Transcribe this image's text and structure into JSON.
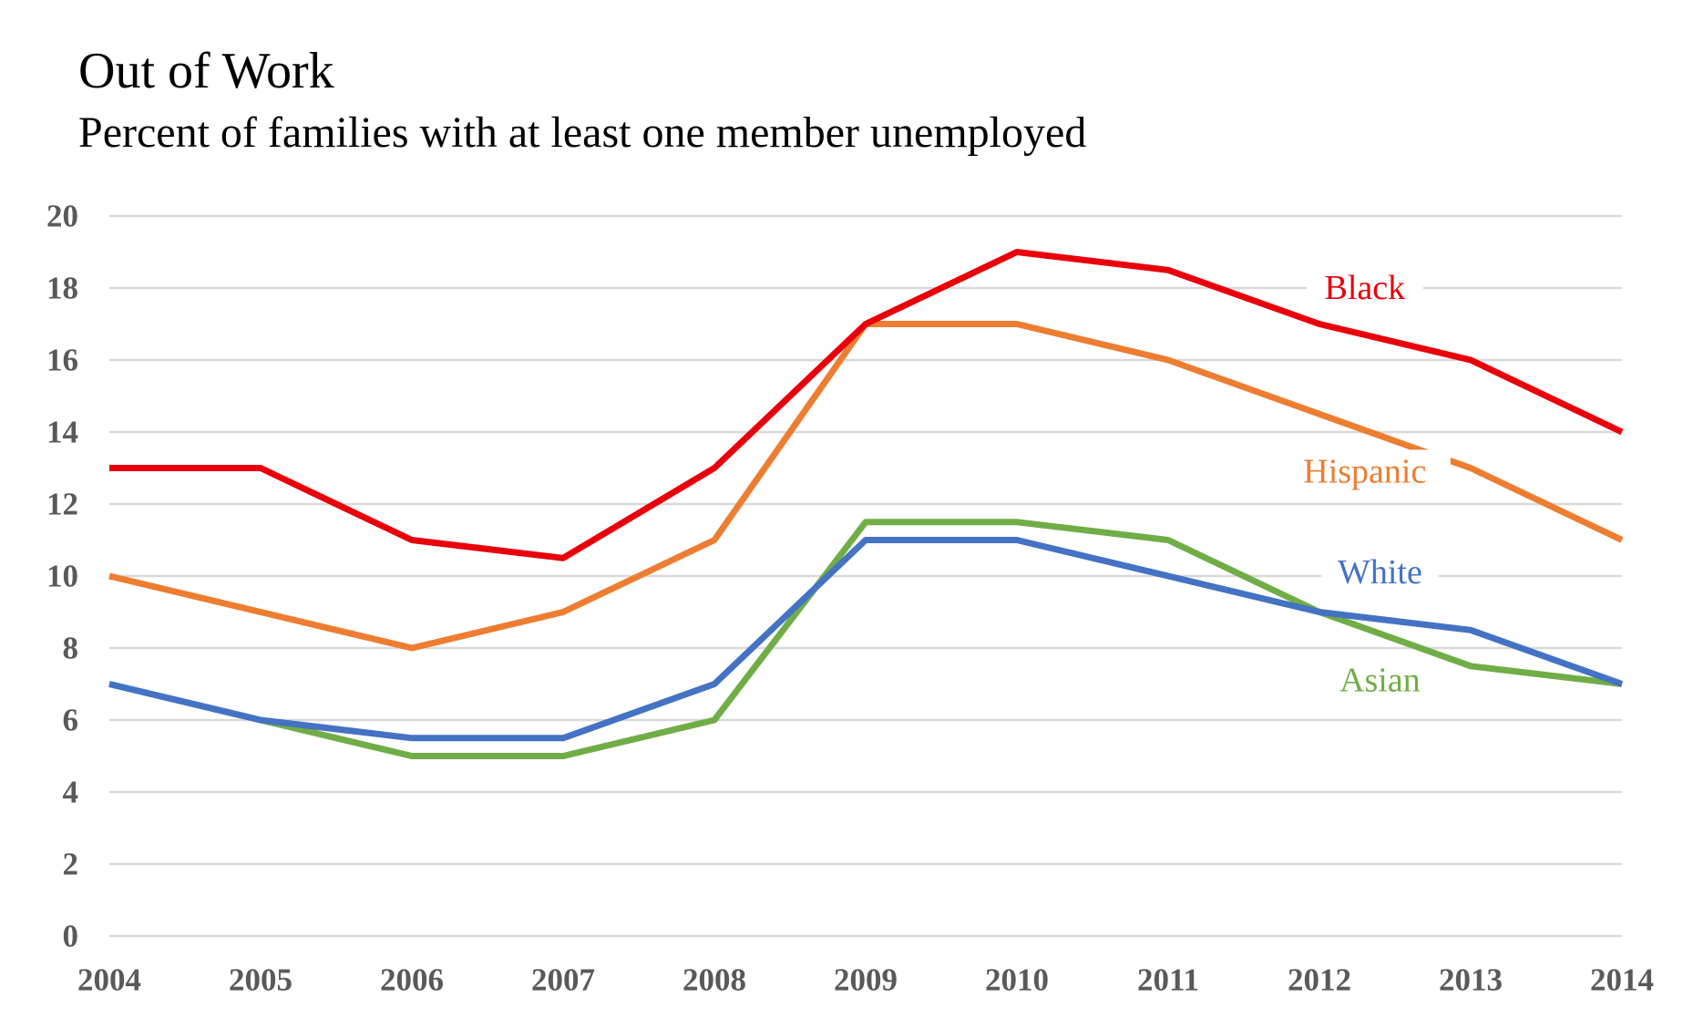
{
  "chart_data": {
    "type": "line",
    "title": "Out of Work",
    "subtitle": "Percent of families with at least one member unemployed",
    "xlabel": "",
    "ylabel": "",
    "x": [
      "2004",
      "2005",
      "2006",
      "2007",
      "2008",
      "2009",
      "2010",
      "2011",
      "2012",
      "2013",
      "2014"
    ],
    "y_ticks": [
      "0",
      "2",
      "4",
      "6",
      "8",
      "10",
      "12",
      "14",
      "16",
      "18",
      "20"
    ],
    "ylim": [
      0,
      20
    ],
    "grid": true,
    "legend": "inline labels at right",
    "series": [
      {
        "name": "Black",
        "color": "#e8000b",
        "values": [
          13,
          13,
          11,
          10.5,
          13,
          17,
          19,
          18.5,
          17,
          16,
          14
        ]
      },
      {
        "name": "Hispanic",
        "color": "#ed7d31",
        "values": [
          10,
          9,
          8,
          9,
          11,
          17,
          17,
          16,
          14.5,
          13,
          11
        ]
      },
      {
        "name": "White",
        "color": "#4472c4",
        "values": [
          7,
          6,
          5.5,
          5.5,
          7,
          11,
          11,
          10,
          9,
          8.5,
          7
        ]
      },
      {
        "name": "Asian",
        "color": "#70ad47",
        "values": [
          7,
          6,
          5,
          5,
          6,
          11.5,
          11.5,
          11,
          9,
          7.5,
          7
        ]
      }
    ]
  }
}
